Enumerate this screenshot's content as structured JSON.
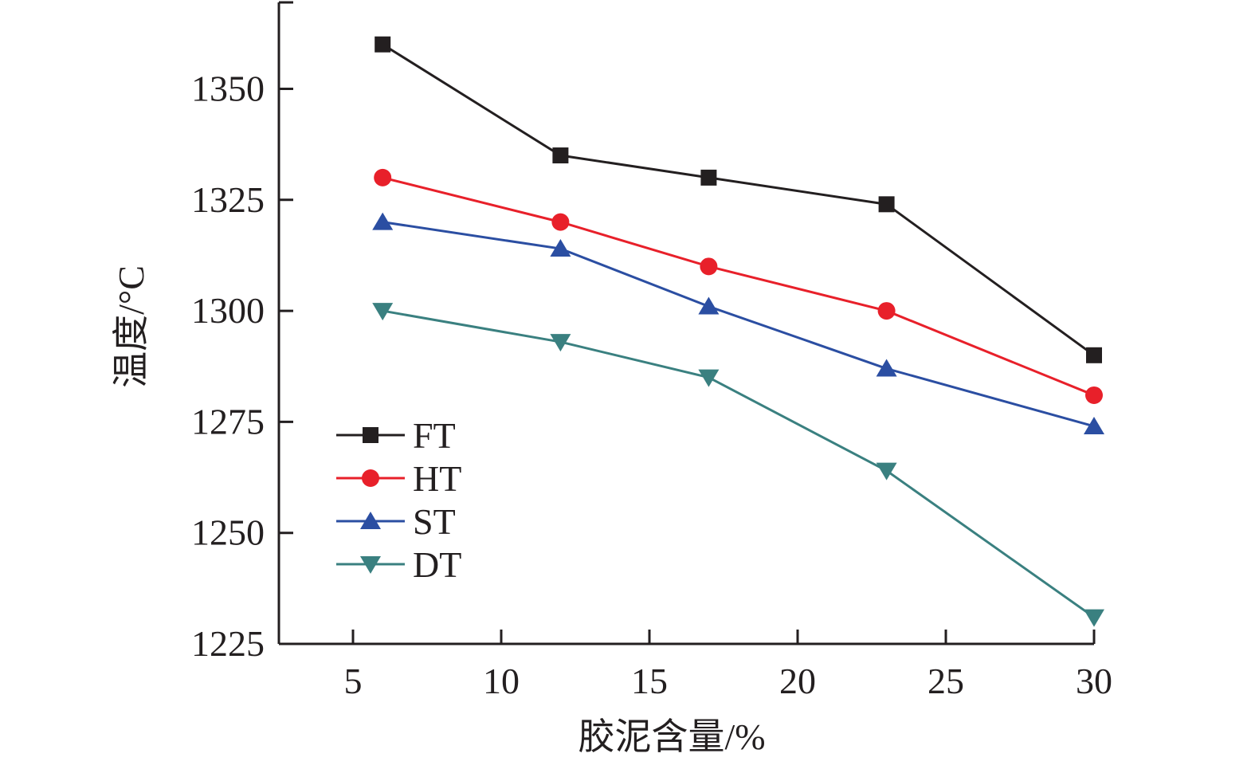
{
  "chart_data": {
    "type": "line",
    "xlabel": "胶泥含量/%",
    "ylabel": "温度/°C",
    "x": [
      6,
      12,
      17,
      23,
      30
    ],
    "xlim": [
      2.5,
      30
    ],
    "ylim": [
      1225,
      1370
    ],
    "xticks": [
      5,
      10,
      15,
      20,
      25,
      30
    ],
    "yticks": [
      1225,
      1250,
      1275,
      1300,
      1325,
      1350
    ],
    "xtick_labels": [
      "5",
      "10",
      "15",
      "20",
      "25",
      "30"
    ],
    "ytick_labels": [
      "1225",
      "1250",
      "1275",
      "1300",
      "1325",
      "1350"
    ],
    "grid": false,
    "legend_position": "bottom-left",
    "series": [
      {
        "name": "FT",
        "color": "#231f20",
        "marker": "square",
        "values": [
          1360,
          1335,
          1330,
          1324,
          1290
        ]
      },
      {
        "name": "HT",
        "color": "#e8202a",
        "marker": "circle",
        "values": [
          1330,
          1320,
          1310,
          1300,
          1281
        ]
      },
      {
        "name": "ST",
        "color": "#2b4ea2",
        "marker": "triangle-up",
        "values": [
          1320,
          1314,
          1301,
          1287,
          1274
        ]
      },
      {
        "name": "DT",
        "color": "#3a8080",
        "marker": "triangle-down",
        "values": [
          1300,
          1293,
          1285,
          1264,
          1231
        ]
      }
    ]
  }
}
